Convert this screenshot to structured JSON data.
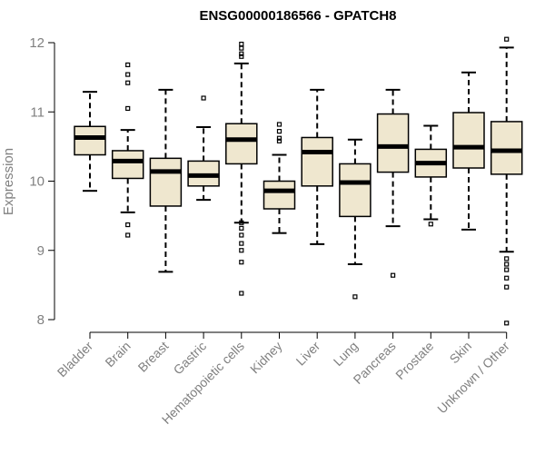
{
  "chart_data": {
    "type": "box",
    "title": "ENSG00000186566 - GPATCH8",
    "xlabel": "",
    "ylabel": "Expression",
    "ylim": [
      8,
      12
    ],
    "yticks": [
      8,
      9,
      10,
      11,
      12
    ],
    "box_color": "#efe7cf",
    "categories": [
      "Bladder",
      "Brain",
      "Breast",
      "Gastric",
      "Hematopoietic cells",
      "Kidney",
      "Liver",
      "Lung",
      "Pancreas",
      "Prostate",
      "Skin",
      "Unknown / Other"
    ],
    "boxes": [
      {
        "name": "Bladder",
        "whislo": 9.86,
        "q1": 10.38,
        "med": 10.63,
        "q3": 10.79,
        "whishi": 11.29,
        "fliers": []
      },
      {
        "name": "Brain",
        "whislo": 9.55,
        "q1": 10.04,
        "med": 10.29,
        "q3": 10.44,
        "whishi": 10.74,
        "fliers": [
          11.68,
          11.54,
          11.42,
          11.05,
          9.37,
          9.22
        ]
      },
      {
        "name": "Breast",
        "whislo": 8.69,
        "q1": 9.64,
        "med": 10.14,
        "q3": 10.33,
        "whishi": 11.32,
        "fliers": []
      },
      {
        "name": "Gastric",
        "whislo": 9.73,
        "q1": 9.93,
        "med": 10.08,
        "q3": 10.29,
        "whishi": 10.78,
        "fliers": [
          11.2
        ]
      },
      {
        "name": "Hematopoietic cells",
        "whislo": 9.4,
        "q1": 10.25,
        "med": 10.6,
        "q3": 10.83,
        "whishi": 11.7,
        "fliers": [
          11.98,
          11.92,
          11.84,
          11.8,
          9.4,
          9.32,
          9.22,
          9.1,
          9.0,
          8.83,
          8.38
        ]
      },
      {
        "name": "Kidney",
        "whislo": 9.25,
        "q1": 9.6,
        "med": 9.86,
        "q3": 10.0,
        "whishi": 10.38,
        "fliers": [
          10.82,
          10.72,
          10.62,
          10.58
        ]
      },
      {
        "name": "Liver",
        "whislo": 9.09,
        "q1": 9.93,
        "med": 10.42,
        "q3": 10.63,
        "whishi": 11.32,
        "fliers": []
      },
      {
        "name": "Lung",
        "whislo": 8.8,
        "q1": 9.49,
        "med": 9.98,
        "q3": 10.25,
        "whishi": 10.6,
        "fliers": [
          8.33
        ]
      },
      {
        "name": "Pancreas",
        "whislo": 9.35,
        "q1": 10.13,
        "med": 10.5,
        "q3": 10.97,
        "whishi": 11.32,
        "fliers": [
          8.64
        ]
      },
      {
        "name": "Prostate",
        "whislo": 9.45,
        "q1": 10.06,
        "med": 10.26,
        "q3": 10.46,
        "whishi": 10.8,
        "fliers": [
          9.38
        ]
      },
      {
        "name": "Skin",
        "whislo": 9.3,
        "q1": 10.19,
        "med": 10.49,
        "q3": 10.99,
        "whishi": 11.57,
        "fliers": []
      },
      {
        "name": "Unknown / Other",
        "whislo": 8.98,
        "q1": 10.1,
        "med": 10.44,
        "q3": 10.86,
        "whishi": 11.93,
        "fliers": [
          12.05,
          8.88,
          8.8,
          8.72,
          8.6,
          8.47,
          7.95
        ]
      }
    ]
  }
}
